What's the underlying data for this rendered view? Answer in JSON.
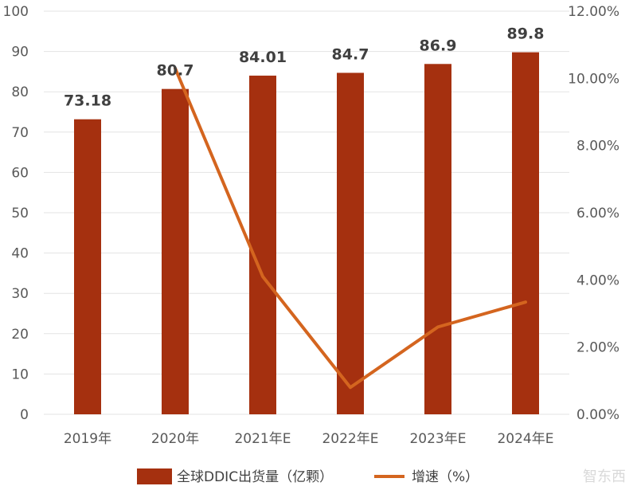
{
  "chart_data": {
    "type": "bar",
    "categories": [
      "2019年",
      "2020年",
      "2021年E",
      "2022年E",
      "2023年E",
      "2024年E"
    ],
    "series": [
      {
        "name": "全球DDIC出货量（亿颗）",
        "type": "bar",
        "axis": "left",
        "values": [
          73.18,
          80.7,
          84.01,
          84.7,
          86.9,
          89.8
        ],
        "labels": [
          "73.18",
          "80.7",
          "84.01",
          "84.7",
          "86.9",
          "89.8"
        ],
        "color": "#a5300f"
      },
      {
        "name": "增速（%）",
        "type": "line",
        "axis": "right",
        "values": [
          null,
          10.3,
          4.1,
          0.8,
          2.6,
          3.34
        ],
        "color": "#d4651f"
      }
    ],
    "left_axis": {
      "min": 0,
      "max": 100,
      "ticks": [
        "0",
        "10",
        "20",
        "30",
        "40",
        "50",
        "60",
        "70",
        "80",
        "90",
        "100"
      ]
    },
    "right_axis": {
      "min": 0,
      "max": 12,
      "ticks": [
        "0.00%",
        "2.00%",
        "4.00%",
        "6.00%",
        "8.00%",
        "10.00%",
        "12.00%"
      ]
    },
    "grid": true,
    "legend_position": "bottom",
    "title": "",
    "xlabel": "",
    "ylabel": ""
  },
  "watermark": "智东西"
}
